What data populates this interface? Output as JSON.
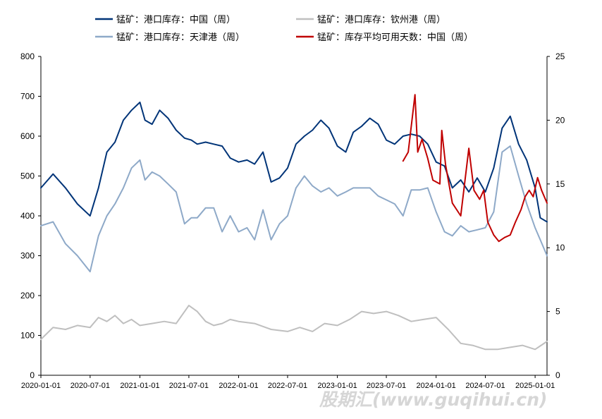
{
  "chart_data": {
    "type": "line",
    "title": "",
    "xlabel": "",
    "ylabel_left": "",
    "ylabel_right": "",
    "x_range": [
      "2020-01-01",
      "2025-02-14"
    ],
    "ylim_left": [
      0,
      800
    ],
    "ylim_right": [
      0,
      25
    ],
    "yticks_left": [
      0,
      100,
      200,
      300,
      400,
      500,
      600,
      700,
      800
    ],
    "yticks_right": [
      0,
      5,
      10,
      15,
      20,
      25
    ],
    "x_tick_labels": [
      "2020-01-01",
      "2020-07-01",
      "2021-01-01",
      "2021-07-01",
      "2022-01-01",
      "2022-07-01",
      "2023-01-01",
      "2023-07-01",
      "2024-01-01",
      "2024-07-01",
      "2025-01-01"
    ],
    "grid": false,
    "legend": "top",
    "series": [
      {
        "name": "锰矿：港口库存：中国（周）",
        "axis": "left",
        "color": "#003478",
        "x": [
          "2020-01-01",
          "2020-02-15",
          "2020-04-01",
          "2020-05-15",
          "2020-07-01",
          "2020-08-01",
          "2020-09-01",
          "2020-10-01",
          "2020-11-01",
          "2020-12-01",
          "2021-01-01",
          "2021-01-20",
          "2021-02-15",
          "2021-03-15",
          "2021-04-15",
          "2021-05-15",
          "2021-06-15",
          "2021-07-10",
          "2021-08-01",
          "2021-09-01",
          "2021-10-01",
          "2021-11-01",
          "2021-12-01",
          "2022-01-01",
          "2022-02-01",
          "2022-03-01",
          "2022-04-01",
          "2022-05-01",
          "2022-06-01",
          "2022-07-01",
          "2022-08-01",
          "2022-09-01",
          "2022-10-01",
          "2022-11-01",
          "2022-12-01",
          "2023-01-01",
          "2023-02-01",
          "2023-03-01",
          "2023-04-01",
          "2023-05-01",
          "2023-06-01",
          "2023-07-01",
          "2023-08-01",
          "2023-09-01",
          "2023-10-01",
          "2023-11-01",
          "2023-12-01",
          "2024-01-01",
          "2024-02-01",
          "2024-03-01",
          "2024-04-01",
          "2024-05-01",
          "2024-06-01",
          "2024-07-01",
          "2024-08-01",
          "2024-09-01",
          "2024-10-01",
          "2024-11-01",
          "2024-12-01",
          "2025-01-01",
          "2025-01-20",
          "2025-02-14"
        ],
        "values": [
          470,
          505,
          470,
          430,
          400,
          470,
          560,
          585,
          640,
          665,
          685,
          640,
          630,
          665,
          645,
          615,
          595,
          590,
          580,
          585,
          580,
          575,
          545,
          535,
          540,
          530,
          560,
          485,
          495,
          520,
          580,
          600,
          615,
          640,
          620,
          575,
          560,
          610,
          625,
          645,
          630,
          590,
          580,
          600,
          605,
          600,
          580,
          535,
          525,
          470,
          490,
          460,
          495,
          460,
          520,
          620,
          650,
          580,
          540,
          470,
          395,
          385
        ]
      },
      {
        "name": "锰矿：港口库存：钦州港（周）",
        "axis": "left",
        "color": "#bfbfbf",
        "x": [
          "2020-01-01",
          "2020-02-15",
          "2020-04-01",
          "2020-05-15",
          "2020-07-01",
          "2020-08-01",
          "2020-09-01",
          "2020-10-01",
          "2020-11-01",
          "2020-12-01",
          "2021-01-01",
          "2021-02-15",
          "2021-04-01",
          "2021-05-15",
          "2021-07-01",
          "2021-08-01",
          "2021-09-01",
          "2021-10-01",
          "2021-11-01",
          "2021-12-01",
          "2022-01-01",
          "2022-03-01",
          "2022-05-01",
          "2022-07-01",
          "2022-08-15",
          "2022-10-01",
          "2022-11-15",
          "2023-01-01",
          "2023-02-15",
          "2023-04-01",
          "2023-05-15",
          "2023-07-01",
          "2023-08-15",
          "2023-10-01",
          "2023-11-15",
          "2024-01-01",
          "2024-02-15",
          "2024-04-01",
          "2024-05-15",
          "2024-07-01",
          "2024-08-15",
          "2024-10-01",
          "2024-11-15",
          "2025-01-01",
          "2025-02-14"
        ],
        "values": [
          90,
          120,
          115,
          125,
          120,
          145,
          135,
          150,
          130,
          140,
          125,
          130,
          135,
          130,
          175,
          160,
          135,
          125,
          130,
          140,
          135,
          130,
          115,
          110,
          120,
          110,
          130,
          125,
          140,
          160,
          155,
          160,
          150,
          135,
          140,
          145,
          115,
          80,
          75,
          65,
          65,
          70,
          75,
          65,
          85
        ]
      },
      {
        "name": "锰矿：港口库存：天津港（周）",
        "axis": "left",
        "color": "#8ea9c8",
        "x": [
          "2020-01-01",
          "2020-02-15",
          "2020-04-01",
          "2020-05-15",
          "2020-07-01",
          "2020-08-01",
          "2020-09-01",
          "2020-10-01",
          "2020-11-01",
          "2020-12-01",
          "2021-01-01",
          "2021-01-20",
          "2021-02-15",
          "2021-03-15",
          "2021-04-15",
          "2021-05-15",
          "2021-06-15",
          "2021-07-10",
          "2021-08-01",
          "2021-09-01",
          "2021-10-01",
          "2021-11-01",
          "2021-12-01",
          "2022-01-01",
          "2022-02-01",
          "2022-03-01",
          "2022-04-01",
          "2022-05-01",
          "2022-06-01",
          "2022-07-01",
          "2022-08-01",
          "2022-09-01",
          "2022-10-01",
          "2022-11-01",
          "2022-12-01",
          "2023-01-01",
          "2023-02-01",
          "2023-03-01",
          "2023-04-01",
          "2023-05-01",
          "2023-06-01",
          "2023-07-01",
          "2023-08-01",
          "2023-09-01",
          "2023-10-01",
          "2023-11-01",
          "2023-12-01",
          "2024-01-01",
          "2024-02-01",
          "2024-03-01",
          "2024-04-01",
          "2024-05-01",
          "2024-06-01",
          "2024-07-01",
          "2024-08-01",
          "2024-09-01",
          "2024-10-01",
          "2024-11-01",
          "2024-12-01",
          "2025-01-01",
          "2025-01-20",
          "2025-02-14"
        ],
        "values": [
          375,
          385,
          330,
          300,
          260,
          350,
          400,
          430,
          470,
          520,
          540,
          490,
          510,
          500,
          480,
          460,
          380,
          395,
          395,
          420,
          420,
          360,
          400,
          360,
          370,
          340,
          415,
          340,
          380,
          400,
          470,
          500,
          475,
          460,
          470,
          450,
          460,
          470,
          470,
          470,
          450,
          440,
          430,
          400,
          465,
          465,
          470,
          410,
          360,
          350,
          375,
          360,
          365,
          370,
          410,
          560,
          575,
          500,
          430,
          370,
          340,
          300
        ]
      },
      {
        "name": "锰矿：库存平均可用天数：中国（周）",
        "axis": "right",
        "color": "#c00000",
        "x": [
          "2023-09-01",
          "2023-09-20",
          "2023-10-15",
          "2023-10-25",
          "2023-11-10",
          "2023-12-01",
          "2023-12-20",
          "2024-01-15",
          "2024-01-22",
          "2024-02-05",
          "2024-03-01",
          "2024-04-01",
          "2024-05-01",
          "2024-05-20",
          "2024-06-10",
          "2024-06-25",
          "2024-07-10",
          "2024-08-01",
          "2024-08-20",
          "2024-09-10",
          "2024-10-01",
          "2024-10-20",
          "2024-11-10",
          "2024-11-25",
          "2024-12-10",
          "2024-12-25",
          "2025-01-10",
          "2025-01-25",
          "2025-02-14"
        ],
        "values": [
          16.8,
          17.5,
          22.0,
          17.5,
          18.5,
          17.0,
          15.3,
          15.0,
          19.2,
          16.5,
          13.5,
          12.5,
          17.8,
          14.5,
          13.8,
          14.5,
          12.0,
          11.0,
          10.5,
          10.8,
          11.0,
          12.0,
          13.0,
          14.0,
          14.5,
          14.0,
          15.5,
          14.5,
          13.5
        ]
      }
    ]
  },
  "watermark": {
    "text": "股期汇(www.guqihui.cn)"
  }
}
